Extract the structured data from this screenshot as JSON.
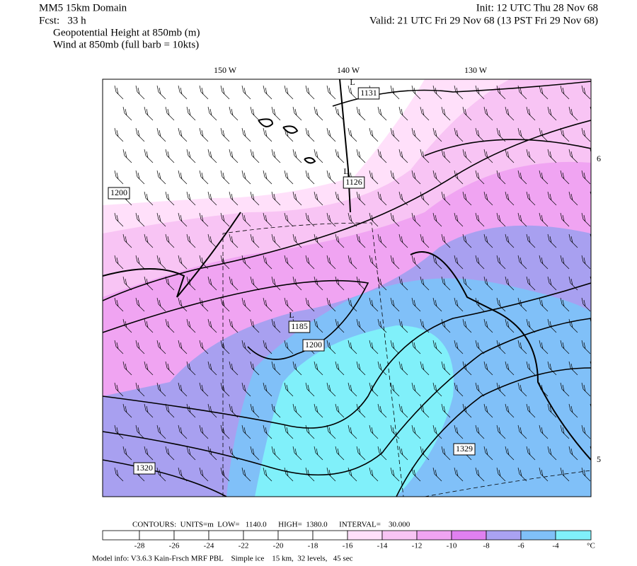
{
  "header": {
    "title": "MM5 15km Domain",
    "forecast": "Fcst:   33 h",
    "field1": "Geopotential Height at 850mb (m)",
    "field2": "Wind at 850mb (full barb = 10kts)",
    "init": "Init: 12 UTC Thu 28 Nov 68",
    "valid": "Valid: 21 UTC Fri 29 Nov 68 (13 PST Fri 29 Nov 68)"
  },
  "map": {
    "longitudes": [
      "150 W",
      "140 W",
      "130 W"
    ],
    "latitudes": [
      "6",
      "5"
    ],
    "labels": [
      "1200",
      "1131",
      "1126",
      "1185",
      "1200",
      "1329",
      "1320"
    ],
    "lows": [
      "L",
      "L",
      "L"
    ]
  },
  "colorbar": {
    "contours": "CONTOURS:  UNITS=m  LOW=   1140.0      HIGH=  1380.0      INTERVAL=    30.000",
    "ticks": [
      -28,
      -26,
      -24,
      -22,
      -20,
      -18,
      -16,
      -14,
      -12,
      -10,
      -8,
      -6,
      -4
    ],
    "unit": "°C",
    "colors": [
      "#ffffff",
      "#ffffff",
      "#ffffff",
      "#ffffff",
      "#ffffff",
      "#ffffff",
      "#ffffff",
      "#ffe0fa",
      "#f8c4f4",
      "#f0a4f2",
      "#e080f0",
      "#aaa2f2",
      "#80c0f8",
      "#80f0fa"
    ]
  },
  "footer": "Model info: V3.6.3 Kain-Frsch MRF PBL    Simple ice    15 km,  32 levels,   45 sec"
}
